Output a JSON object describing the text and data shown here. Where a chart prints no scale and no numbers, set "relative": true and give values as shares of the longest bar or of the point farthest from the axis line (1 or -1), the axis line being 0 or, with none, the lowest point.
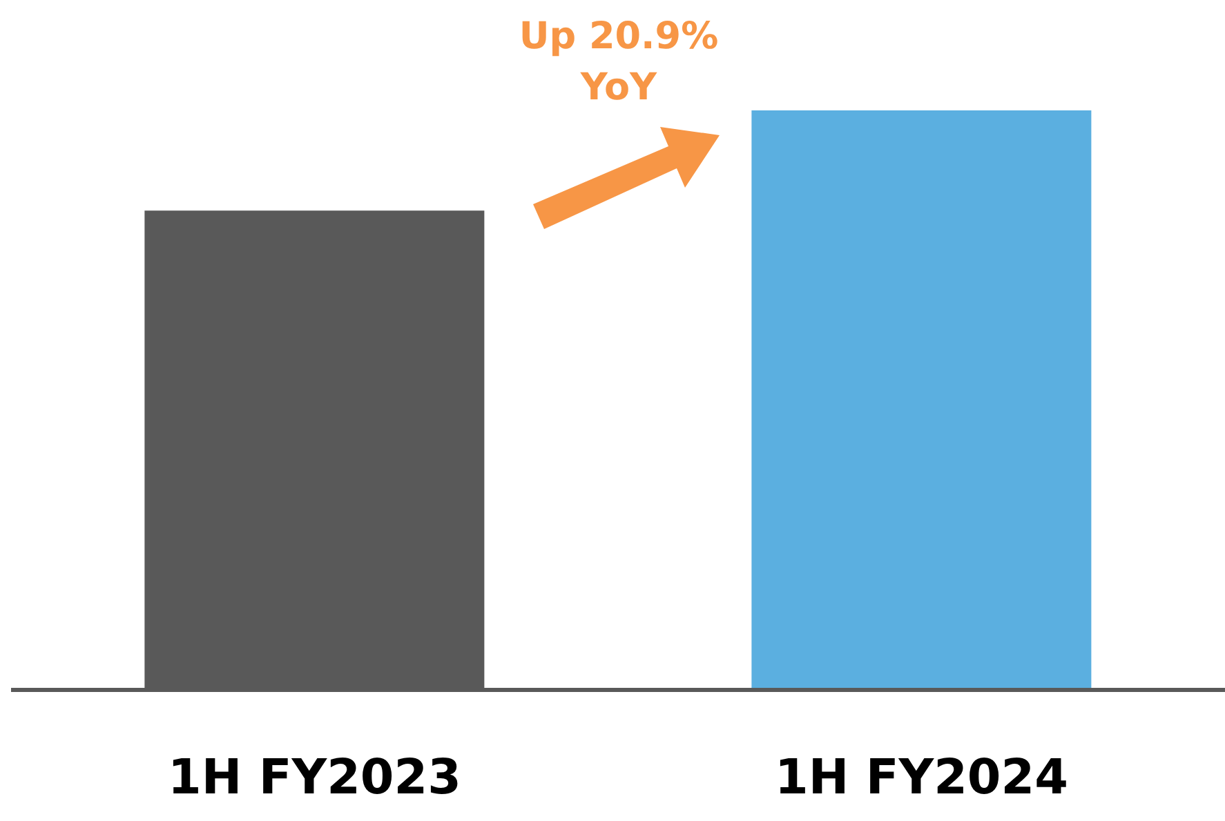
{
  "chart_data": {
    "type": "bar",
    "relative": true,
    "categories": [
      "1H FY2023",
      "1H FY2024"
    ],
    "values": [
      0.827,
      1
    ],
    "colors": [
      "#595959",
      "#5bafe0"
    ],
    "annotations": [
      "Up 20.9% YoY"
    ]
  }
}
